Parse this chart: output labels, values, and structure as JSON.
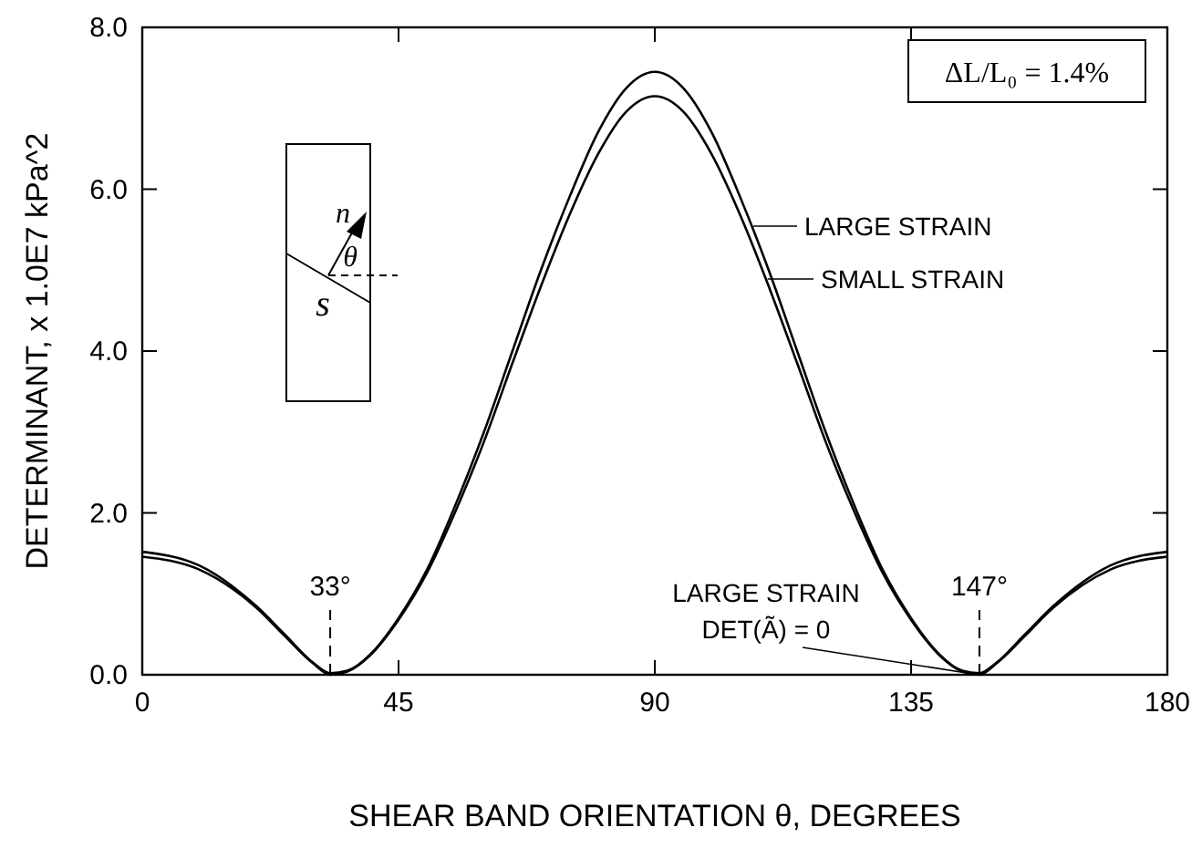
{
  "chart_data": {
    "type": "line",
    "xlabel": "SHEAR BAND ORIENTATION θ, DEGREES",
    "ylabel": "DETERMINANT, x 1.0E7 kPa^2",
    "x": [
      0,
      10,
      20,
      25,
      30,
      33,
      36,
      40,
      45,
      50,
      55,
      60,
      65,
      70,
      75,
      80,
      85,
      90,
      95,
      100,
      105,
      110,
      115,
      120,
      125,
      130,
      135,
      140,
      144,
      147,
      150,
      155,
      160,
      170,
      180
    ],
    "series": [
      {
        "name": "LARGE STRAIN",
        "color": "#000000",
        "values": [
          1.52,
          1.35,
          0.85,
          0.5,
          0.15,
          0.02,
          0.05,
          0.25,
          0.7,
          1.3,
          2.1,
          3.0,
          4.0,
          5.0,
          5.9,
          6.7,
          7.25,
          7.45,
          7.25,
          6.7,
          5.9,
          5.0,
          4.0,
          3.0,
          2.1,
          1.3,
          0.7,
          0.25,
          0.05,
          0.02,
          0.15,
          0.5,
          0.85,
          1.35,
          1.52
        ]
      },
      {
        "name": "SMALL STRAIN",
        "color": "#000000",
        "values": [
          1.46,
          1.3,
          0.83,
          0.48,
          0.14,
          0.0,
          0.04,
          0.24,
          0.68,
          1.26,
          2.02,
          2.88,
          3.85,
          4.8,
          5.68,
          6.43,
          6.96,
          7.15,
          6.96,
          6.43,
          5.68,
          4.8,
          3.85,
          2.88,
          2.02,
          1.26,
          0.68,
          0.24,
          0.04,
          0.0,
          0.14,
          0.48,
          0.83,
          1.3,
          1.46
        ]
      }
    ],
    "xlim": [
      0,
      180
    ],
    "xticks": [
      0,
      45,
      90,
      135,
      180
    ],
    "ylim": [
      0,
      8
    ],
    "yticks": [
      {
        "value": 0,
        "label": "0.0"
      },
      {
        "value": 2,
        "label": "2.0"
      },
      {
        "value": 4,
        "label": "4.0"
      },
      {
        "value": 6,
        "label": "6.0"
      },
      {
        "value": 8,
        "label": "8.0"
      }
    ],
    "ref_lines": [
      {
        "axis": "x",
        "value": 33,
        "label": "33°",
        "line_style": "dashed"
      },
      {
        "axis": "x",
        "value": 147,
        "label": "147°",
        "line_style": "dashed"
      }
    ],
    "annotations": [
      "ΔL/L₀ = 1.4%",
      {
        "text": "LARGE STRAIN\nDET(Ã) = 0",
        "x": 145,
        "y": 0.02
      },
      "n",
      "θ",
      "s"
    ],
    "grid": false,
    "legend": "right",
    "marker": "none",
    "line_style": "solid"
  }
}
